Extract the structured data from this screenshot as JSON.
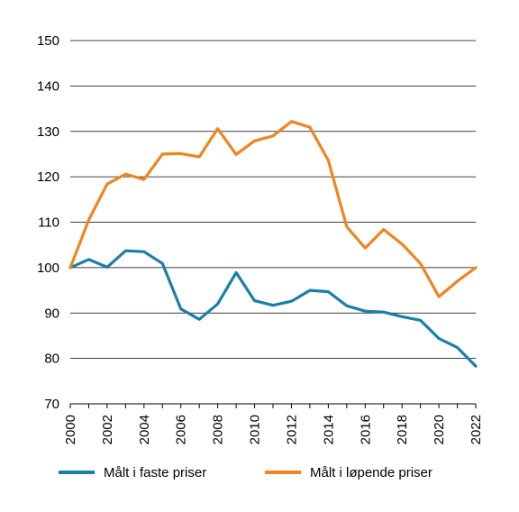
{
  "chart_data": {
    "type": "line",
    "title": "",
    "xlabel": "",
    "ylabel": "",
    "ylim": [
      70,
      150
    ],
    "yticks": [
      70,
      80,
      90,
      100,
      110,
      120,
      130,
      140,
      150
    ],
    "xlim": [
      2000,
      2022
    ],
    "xticks": [
      2000,
      2002,
      2004,
      2006,
      2008,
      2010,
      2012,
      2014,
      2016,
      2018,
      2020,
      2022
    ],
    "x": [
      2000,
      2001,
      2002,
      2003,
      2004,
      2005,
      2006,
      2007,
      2008,
      2009,
      2010,
      2011,
      2012,
      2013,
      2014,
      2015,
      2016,
      2017,
      2018,
      2019,
      2020,
      2021,
      2022
    ],
    "grid": "horizontal",
    "legend_position": "bottom",
    "series": [
      {
        "name": "Målt i faste priser",
        "color": "#1a7fa8",
        "values": [
          100,
          101.8,
          100.1,
          103.7,
          103.5,
          100.9,
          90.9,
          88.6,
          92.0,
          98.9,
          92.7,
          91.7,
          92.6,
          95.0,
          94.7,
          91.6,
          90.4,
          90.2,
          89.2,
          88.4,
          84.4,
          82.4,
          78.3
        ]
      },
      {
        "name": "Målt i løpende priser",
        "color": "#f0841f",
        "values": [
          100,
          110.5,
          118.4,
          120.6,
          119.4,
          125.0,
          125.1,
          124.4,
          130.6,
          124.9,
          127.9,
          129.0,
          132.2,
          130.9,
          123.6,
          109.0,
          104.3,
          108.4,
          105.2,
          100.9,
          93.6,
          97.0,
          100.0
        ]
      }
    ]
  }
}
